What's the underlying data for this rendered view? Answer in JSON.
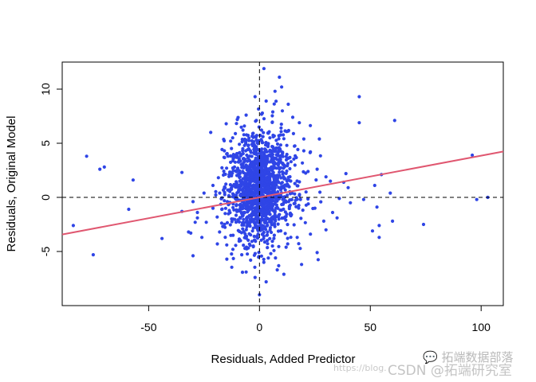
{
  "chart_data": {
    "type": "scatter",
    "xlabel": "Residuals, Added Predictor",
    "ylabel": "Residuals, Original Model",
    "xlim": [
      -89,
      110
    ],
    "ylim": [
      -10,
      12.5
    ],
    "x_ticks": [
      -50,
      0,
      50,
      100
    ],
    "y_ticks": [
      -5,
      0,
      5,
      10
    ],
    "grid": false,
    "point_color": "#2f45e6",
    "fit_line": {
      "slope": 0.0385,
      "intercept": 0.0,
      "color": "#e05770"
    },
    "reference_lines": {
      "x": 0,
      "y": 0,
      "style": "dashed",
      "color": "#000000"
    },
    "points": [
      [
        -78,
        3.8
      ],
      [
        -84,
        -2.6
      ],
      [
        -75,
        -5.3
      ],
      [
        -72,
        2.6
      ],
      [
        -70,
        2.8
      ],
      [
        -57,
        1.6
      ],
      [
        -59,
        -1.1
      ],
      [
        -44,
        -3.8
      ],
      [
        -35,
        2.3
      ],
      [
        -35,
        -1.3
      ],
      [
        -32,
        -3.2
      ],
      [
        -31,
        -3.3
      ],
      [
        -30,
        -5.4
      ],
      [
        -29,
        -2.3
      ],
      [
        -28,
        -1.4
      ],
      [
        -24,
        -2.3
      ],
      [
        -22,
        6
      ],
      [
        -21,
        -1
      ],
      [
        -19,
        -4.3
      ],
      [
        -18,
        -3.2
      ],
      [
        -15,
        6.8
      ],
      [
        -17,
        -1.1
      ],
      [
        2,
        11.9
      ],
      [
        9,
        11.1
      ],
      [
        45,
        9.3
      ],
      [
        61,
        7.1
      ],
      [
        45,
        6.9
      ],
      [
        27,
        5.4
      ],
      [
        20,
        4.3
      ],
      [
        32,
        1.5
      ],
      [
        39,
        2.2
      ],
      [
        40,
        0.9
      ],
      [
        41,
        -0.5
      ],
      [
        47,
        -0.2
      ],
      [
        52,
        1.1
      ],
      [
        55,
        2.1
      ],
      [
        59,
        0.4
      ],
      [
        53,
        -0.9
      ],
      [
        51,
        -3.1
      ],
      [
        54,
        -2.6
      ],
      [
        54,
        -3.7
      ],
      [
        60,
        -2.2
      ],
      [
        74,
        -2.5
      ],
      [
        96,
        3.9
      ],
      [
        98,
        -0.2
      ],
      [
        103,
        0
      ],
      [
        26,
        -5.1
      ],
      [
        19,
        -6.2
      ],
      [
        0,
        -9
      ],
      [
        -12,
        -4.8
      ],
      [
        -8,
        -5.3
      ],
      [
        -4,
        -5.8
      ],
      [
        4,
        -5.6
      ],
      [
        12,
        -4.6
      ],
      [
        17,
        -3.7
      ],
      [
        23,
        -3.4
      ],
      [
        29,
        -2.2
      ],
      [
        33,
        -1.4
      ],
      [
        36,
        -0.1
      ],
      [
        25,
        -1
      ],
      [
        30,
        -3
      ],
      [
        22,
        -0.6
      ],
      [
        -2,
        9.3
      ],
      [
        3,
        8.9
      ],
      [
        7,
        9.8
      ],
      [
        10,
        10.2
      ],
      [
        13,
        8.6
      ],
      [
        6,
        7.9
      ],
      [
        -6,
        7.6
      ],
      [
        15,
        7.4
      ],
      [
        18,
        6.9
      ],
      [
        -10,
        7.2
      ],
      [
        -13,
        5.2
      ],
      [
        20,
        5.4
      ],
      [
        23,
        4.2
      ],
      [
        -16,
        3.7
      ],
      [
        26,
        2.6
      ],
      [
        30,
        1.9
      ],
      [
        -21,
        1.1
      ],
      [
        -25,
        0.4
      ],
      [
        -2,
        -7.4
      ],
      [
        3,
        -7.8
      ],
      [
        -6,
        -6.9
      ],
      [
        8,
        -6.7
      ],
      [
        11,
        -7.1
      ],
      [
        -28,
        -1.9
      ],
      [
        -30,
        -0.4
      ],
      [
        -26,
        -3.7
      ],
      [
        35,
        -1.9
      ],
      [
        38,
        1.4
      ]
    ]
  }
}
